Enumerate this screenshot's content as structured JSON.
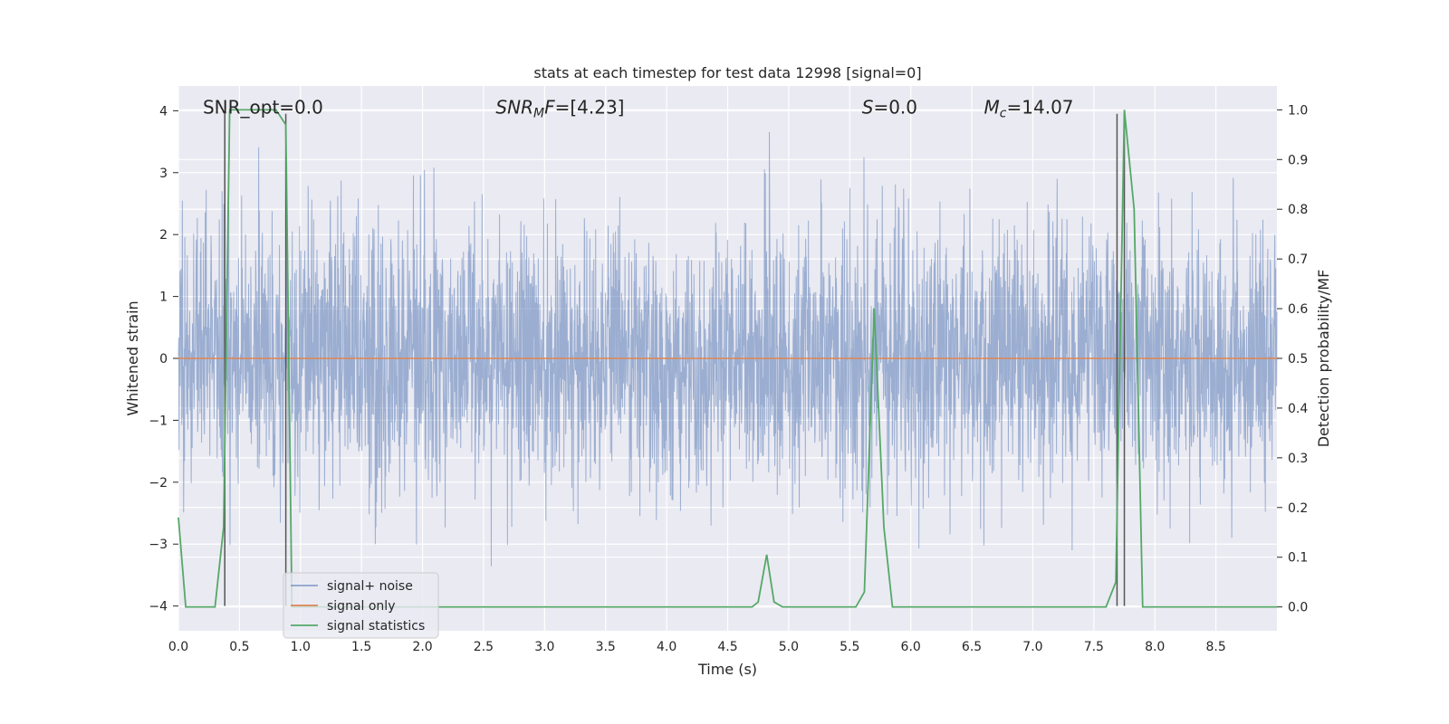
{
  "chart_data": {
    "type": "line",
    "title": "stats at each timestep for test data 12998 [signal=0]",
    "xlabel": "Time (s)",
    "ylabel": "Whitened strain",
    "y2label": "Detection probability/MF",
    "xlim": [
      0.0,
      9.0
    ],
    "ylim": [
      -4.4,
      4.4
    ],
    "y2lim": [
      -0.048,
      1.048
    ],
    "xticks": [
      "0.0",
      "0.5",
      "1.0",
      "1.5",
      "2.0",
      "2.5",
      "3.0",
      "3.5",
      "4.0",
      "4.5",
      "5.0",
      "5.5",
      "6.0",
      "6.5",
      "7.0",
      "7.5",
      "8.0",
      "8.5"
    ],
    "xtick_values": [
      0.0,
      0.5,
      1.0,
      1.5,
      2.0,
      2.5,
      3.0,
      3.5,
      4.0,
      4.5,
      5.0,
      5.5,
      6.0,
      6.5,
      7.0,
      7.5,
      8.0,
      8.5
    ],
    "yticks": [
      "−4",
      "−3",
      "−2",
      "−1",
      "0",
      "1",
      "2",
      "3",
      "4"
    ],
    "ytick_values": [
      -4,
      -3,
      -2,
      -1,
      0,
      1,
      2,
      3,
      4
    ],
    "y2ticks": [
      "0.0",
      "0.1",
      "0.2",
      "0.3",
      "0.4",
      "0.5",
      "0.6",
      "0.7",
      "0.8",
      "0.9",
      "1.0"
    ],
    "y2tick_values": [
      0.0,
      0.1,
      0.2,
      0.3,
      0.4,
      0.5,
      0.6,
      0.7,
      0.8,
      0.9,
      1.0
    ],
    "grid": true,
    "legend_position": "lower-left",
    "annotations": [
      {
        "text": "SNR_opt=0.0",
        "x": 0.2,
        "y": 4.0
      },
      {
        "text": "SNR_MF=[4.23]",
        "x": 2.6,
        "y": 4.0,
        "italic_parts": [
          "SNR",
          "M"
        ]
      },
      {
        "text": "S=0.0",
        "x": 5.6,
        "y": 4.0
      },
      {
        "text": "M_c=14.07",
        "x": 6.6,
        "y": 4.0
      }
    ],
    "vlines": [
      0.38,
      0.88,
      7.69,
      7.75
    ],
    "series": [
      {
        "name": "signal+ noise",
        "color": "#4c72b0",
        "axis": "left",
        "description": "whitened noisy strain sampled densely over 0–9 s, approx. Gaussian with std ~1, peaks to about ±3.8"
      },
      {
        "name": "signal only",
        "color": "#dd8452",
        "axis": "left",
        "x": [
          0.0,
          9.0
        ],
        "values": [
          0.0,
          0.0
        ]
      },
      {
        "name": "signal statistics",
        "color": "#55a868",
        "axis": "right",
        "x": [
          0.0,
          0.06,
          0.1,
          0.3,
          0.37,
          0.42,
          0.44,
          0.8,
          0.88,
          0.93,
          1.0,
          4.5,
          4.7,
          4.75,
          4.82,
          4.88,
          4.95,
          5.2,
          5.55,
          5.62,
          5.7,
          5.78,
          5.85,
          5.95,
          7.6,
          7.68,
          7.75,
          7.83,
          7.9,
          9.0
        ],
        "values": [
          0.18,
          0.0,
          0.0,
          0.0,
          0.16,
          1.0,
          1.0,
          1.0,
          0.97,
          0.0,
          0.0,
          0.0,
          0.0,
          0.01,
          0.105,
          0.01,
          0.0,
          0.0,
          0.0,
          0.03,
          0.6,
          0.16,
          0.0,
          0.0,
          0.0,
          0.05,
          1.0,
          0.8,
          0.0,
          0.0
        ]
      }
    ]
  }
}
